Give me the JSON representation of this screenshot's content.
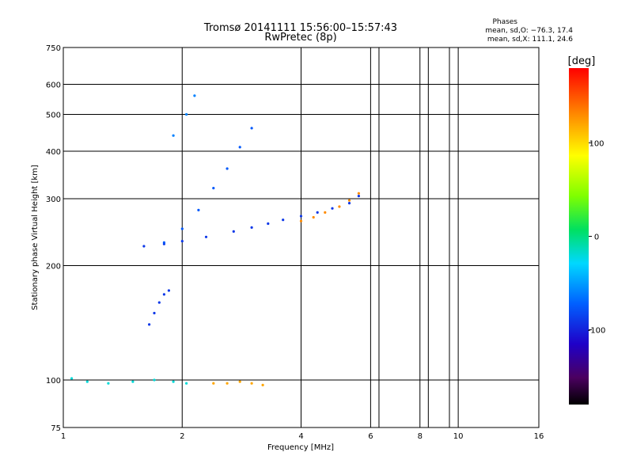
{
  "header": {
    "title_line1": "Tromsø 20141111 15:56:00–15:57:43",
    "title_line2": "RwPretec (8p)",
    "phases_heading": "Phases",
    "phases_o": "mean, sd,O: −76.3, 17.4",
    "phases_x": "mean, sd,X: 111.1, 24.6"
  },
  "colorbar": {
    "unit_label": "[deg]",
    "ticks": [
      {
        "value": 100,
        "label": "100"
      },
      {
        "value": 0,
        "label": "0"
      },
      {
        "value": -100,
        "label": "-100"
      }
    ],
    "range": [
      -180,
      180
    ]
  },
  "chart_data": {
    "type": "scatter",
    "title": "Tromsø 20141111 15:56:00–15:57:43",
    "subtitle": "RwPretec (8p)",
    "xlabel": "Frequency [MHz]",
    "ylabel": "Stationary phase Virtual Height [km]",
    "xscale": "log",
    "yscale": "log",
    "xlim": [
      1,
      16
    ],
    "ylim": [
      75,
      750
    ],
    "x_ticks": [
      1,
      2,
      4,
      6,
      8,
      10,
      16
    ],
    "y_ticks": [
      75,
      100,
      200,
      300,
      400,
      500,
      600,
      750
    ],
    "x_minor_lines": [
      6.3,
      8.4,
      9.5
    ],
    "grid": true,
    "color_encoding": "phase [deg]",
    "traces": [
      {
        "name": "",
        "mode": "O",
        "phase_deg": -90,
        "x": [
          1.6,
          1.8,
          2.0,
          2.3,
          2.7,
          3.0,
          3.3,
          3.6,
          4.0,
          4.4,
          4.8,
          5.3,
          5.6
        ],
        "y": [
          225,
          228,
          232,
          238,
          246,
          252,
          258,
          264,
          270,
          276,
          283,
          292,
          305
        ]
      },
      {
        "name": "",
        "mode": "O",
        "phase_deg": -75,
        "x": [
          1.8,
          2.0,
          2.2,
          2.4,
          2.6,
          2.8,
          3.0
        ],
        "y": [
          230,
          250,
          280,
          320,
          360,
          410,
          460
        ]
      },
      {
        "name": "",
        "mode": "O",
        "phase_deg": -60,
        "x": [
          1.9,
          2.05,
          2.15
        ],
        "y": [
          440,
          500,
          560
        ]
      },
      {
        "name": "",
        "mode": "O",
        "phase_deg": -20,
        "x": [
          1.05,
          1.15,
          1.3,
          1.5,
          1.7,
          1.9,
          2.05
        ],
        "y": [
          101,
          99,
          98,
          99,
          100,
          99,
          98
        ]
      },
      {
        "name": "",
        "mode": "X",
        "phase_deg": 130,
        "x": [
          4.0,
          4.3,
          4.6,
          5.0,
          5.3,
          5.6
        ],
        "y": [
          262,
          268,
          276,
          286,
          297,
          310
        ]
      },
      {
        "name": "",
        "mode": "X",
        "phase_deg": 120,
        "x": [
          2.4,
          2.6,
          2.8,
          3.0,
          3.2
        ],
        "y": [
          98,
          98,
          99,
          98,
          97
        ]
      },
      {
        "name": "",
        "mode": "O",
        "phase_deg": -90,
        "x": [
          1.65,
          1.7,
          1.75,
          1.8,
          1.85
        ],
        "y": [
          140,
          150,
          160,
          168,
          172
        ]
      }
    ]
  }
}
